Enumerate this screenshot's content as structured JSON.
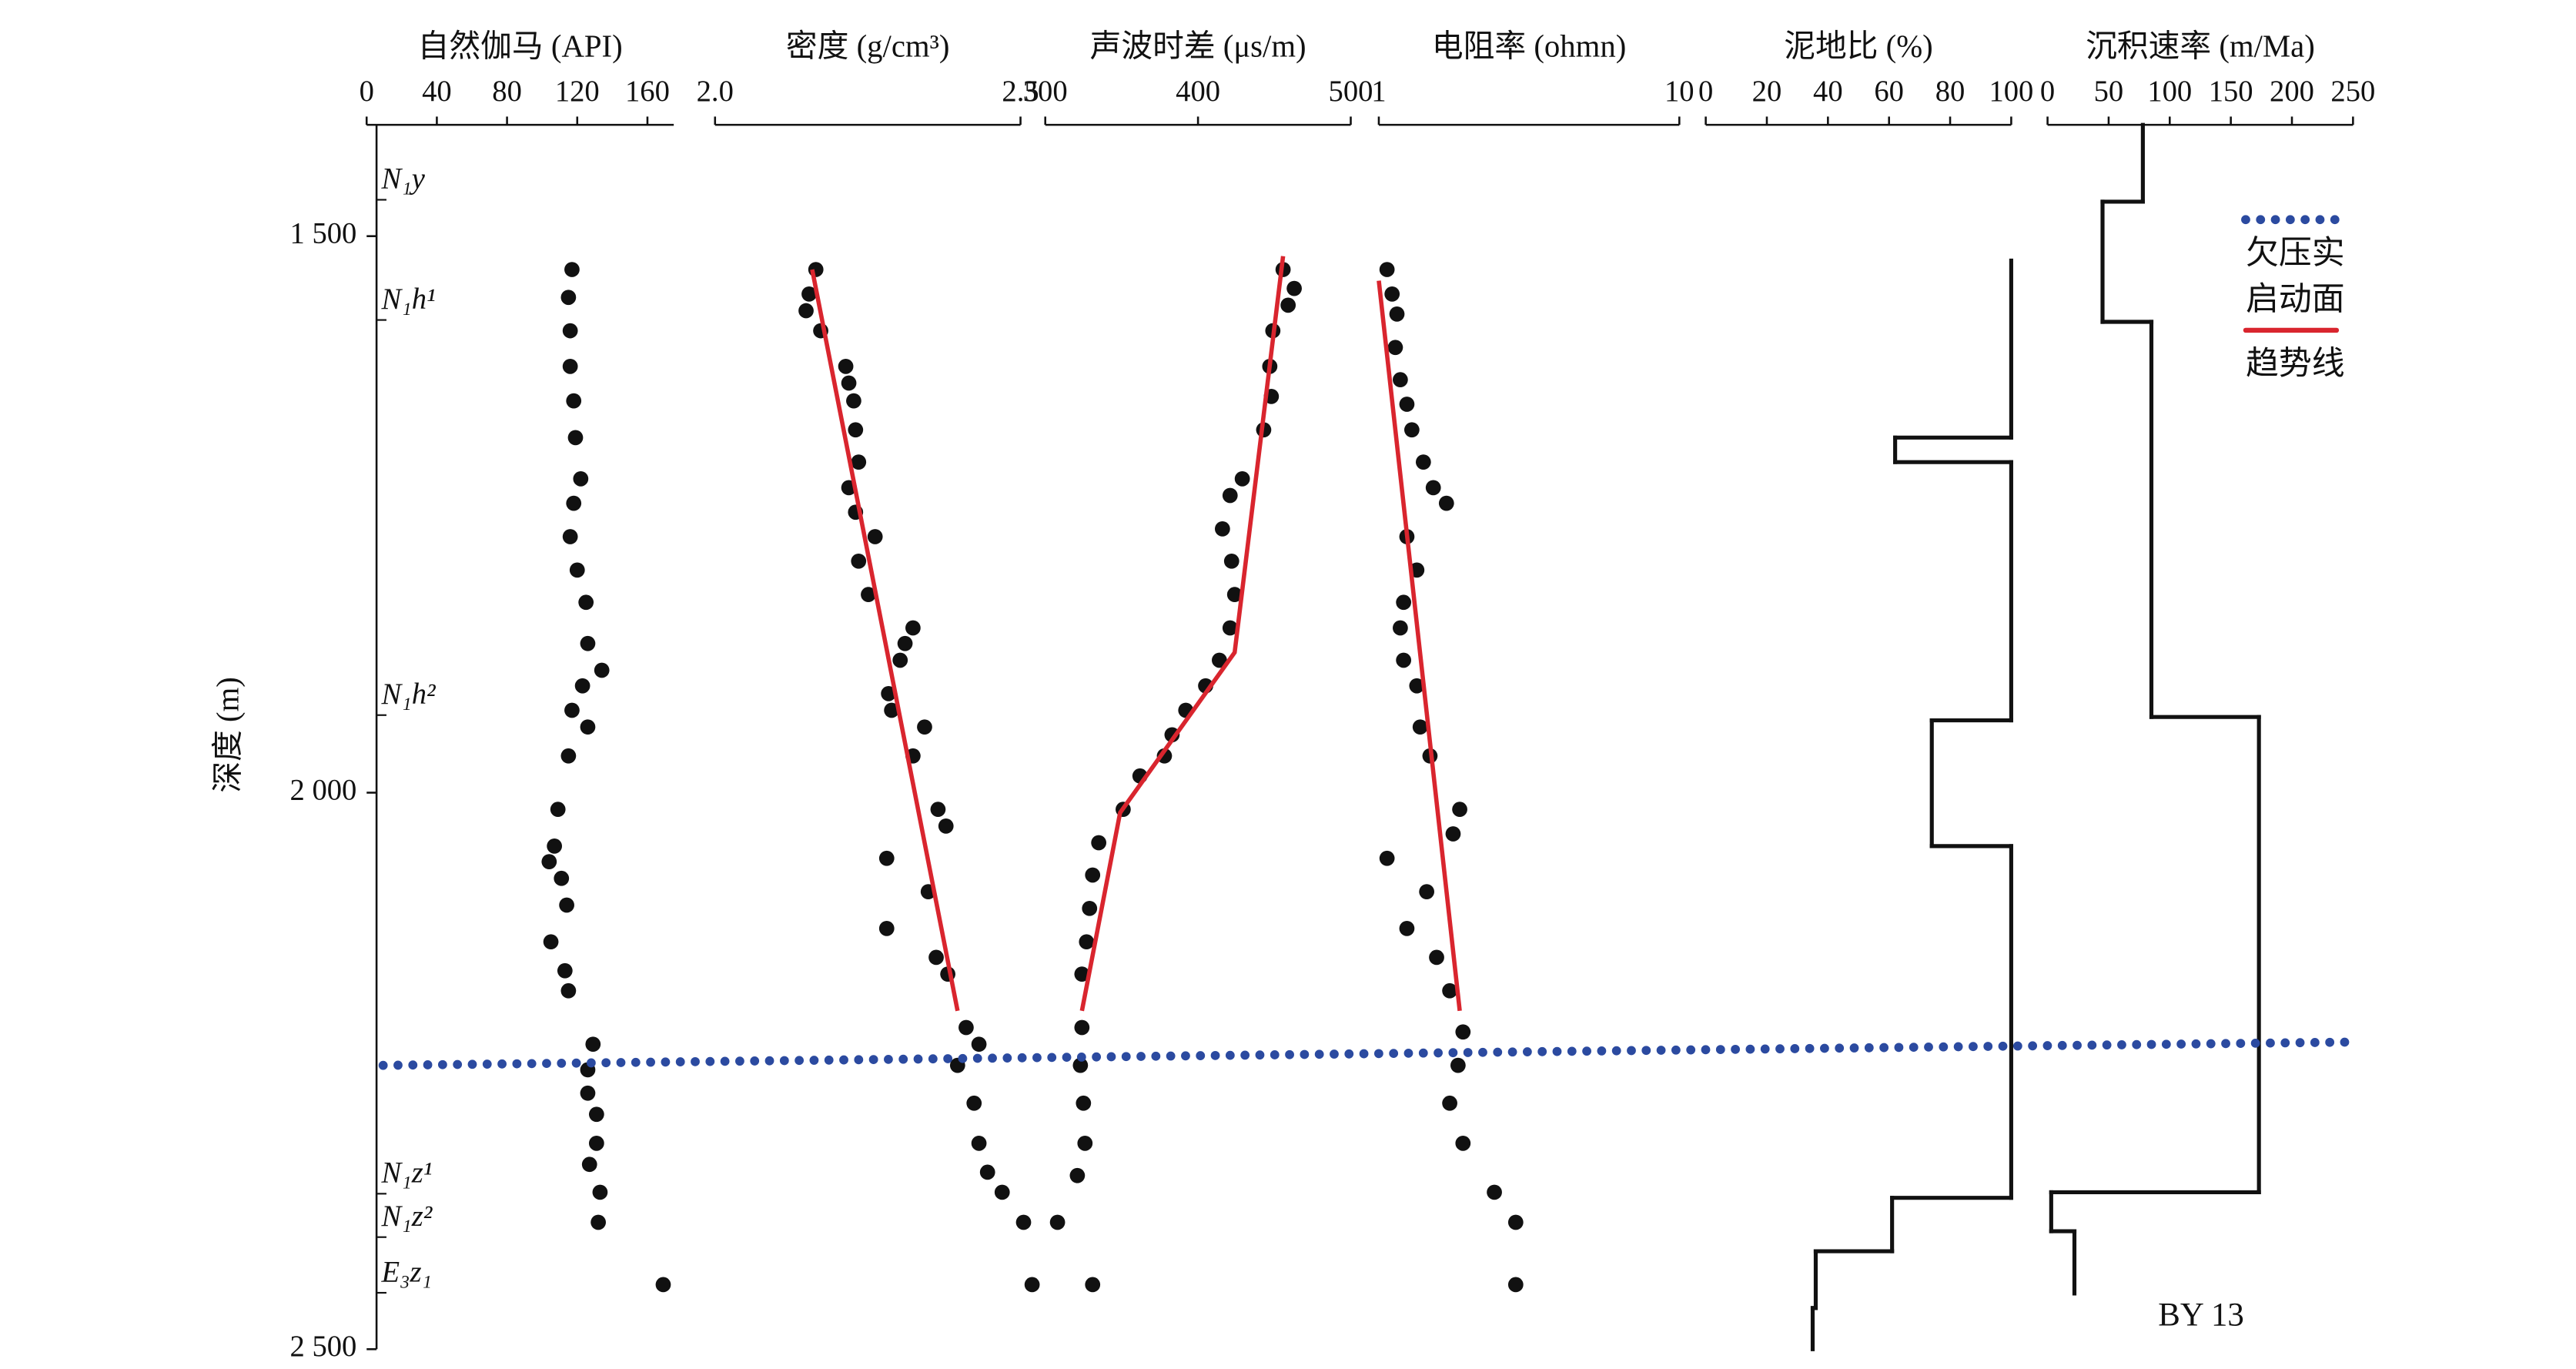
{
  "chart_data": {
    "type": "well-log",
    "ylabel": "深度 (m)",
    "ylim": [
      1400,
      2500
    ],
    "yticks": [
      {
        "value": 1500,
        "label": "1 500"
      },
      {
        "value": 2000,
        "label": "2 000"
      },
      {
        "value": 2500,
        "label": "2 500"
      }
    ],
    "tracks": [
      {
        "type": "scatter",
        "title": "自然伽马 (API)",
        "xlim": [
          0,
          175
        ],
        "xticks": [
          0,
          40,
          80,
          120,
          160
        ],
        "color": "#111111",
        "depth": [
          1530,
          1555,
          1585,
          1617,
          1648,
          1681,
          1718,
          1740,
          1770,
          1800,
          1829,
          1866,
          1890,
          1904,
          1926,
          1941,
          1967,
          2015,
          2048,
          2062,
          2077,
          2101,
          2134,
          2160,
          2178,
          2226,
          2249,
          2270,
          2289,
          2315,
          2334,
          2359,
          2386,
          2442
        ],
        "values": [
          117,
          115,
          116,
          116,
          118,
          119,
          122,
          118,
          116,
          120,
          125,
          126,
          134,
          123,
          117,
          126,
          115,
          109,
          107,
          104,
          111,
          114,
          105,
          113,
          115,
          129,
          126,
          126,
          131,
          131,
          127,
          133,
          132,
          169
        ]
      },
      {
        "type": "scatter",
        "title": "密度 (g/cm³)",
        "xlim": [
          2.0,
          2.5
        ],
        "xticks": [
          {
            "value": 2.0,
            "label": "2.0"
          },
          2.5
        ],
        "color": "#111111",
        "depth": [
          1530,
          1552,
          1567,
          1585,
          1617,
          1632,
          1648,
          1674,
          1703,
          1726,
          1748,
          1770,
          1792,
          1822,
          1852,
          1866,
          1881,
          1911,
          1926,
          1941,
          1967,
          2015,
          2030,
          2059,
          2089,
          2122,
          2148,
          2163,
          2211,
          2226,
          2245,
          2279,
          2315,
          2341,
          2359,
          2386,
          2442
        ],
        "values": [
          2.165,
          2.154,
          2.149,
          2.173,
          2.214,
          2.219,
          2.227,
          2.23,
          2.235,
          2.219,
          2.23,
          2.262,
          2.235,
          2.251,
          2.324,
          2.311,
          2.303,
          2.284,
          2.289,
          2.343,
          2.324,
          2.365,
          2.378,
          2.281,
          2.349,
          2.281,
          2.362,
          2.381,
          2.411,
          2.432,
          2.397,
          2.424,
          2.432,
          2.446,
          2.47,
          2.505,
          2.519
        ],
        "trend": {
          "color": "#d9252e",
          "depth": [
            1530,
            2196
          ],
          "values": [
            2.159,
            2.397
          ]
        }
      },
      {
        "type": "scatter",
        "title": "声波时差 (μs/m)",
        "xlim": [
          300,
          500
        ],
        "xticks": [
          300,
          400,
          500
        ],
        "color": "#111111",
        "depth": [
          1530,
          1547,
          1562,
          1585,
          1617,
          1644,
          1674,
          1718,
          1733,
          1763,
          1792,
          1822,
          1852,
          1881,
          1904,
          1926,
          1948,
          1967,
          1985,
          2015,
          2045,
          2074,
          2104,
          2134,
          2163,
          2211,
          2245,
          2279,
          2315,
          2344,
          2386,
          2442
        ],
        "values": [
          455.7,
          463,
          459,
          449,
          447,
          448,
          443,
          429,
          421,
          416,
          422,
          424,
          421,
          414,
          405,
          392,
          383,
          378,
          362,
          351,
          335,
          331,
          329,
          327,
          324,
          324,
          323,
          325,
          326,
          321,
          308,
          331
        ],
        "trend": {
          "color": "#d9252e",
          "depth": [
            1518,
            1874,
            2018,
            2196
          ],
          "values": [
            455.7,
            424,
            349,
            324
          ]
        }
      },
      {
        "type": "scatter",
        "title": "电阻率 (ohmn)",
        "xlim": [
          1,
          10
        ],
        "xticks": [
          1,
          10
        ],
        "log": true,
        "color": "#111111",
        "depth": [
          1530,
          1552,
          1570,
          1600,
          1629,
          1651,
          1674,
          1703,
          1726,
          1740,
          1770,
          1800,
          1829,
          1852,
          1881,
          1904,
          1941,
          1967,
          2015,
          2037,
          2059,
          2089,
          2122,
          2148,
          2178,
          2215,
          2245,
          2279,
          2315,
          2359,
          2386,
          2442
        ],
        "values": [
          1.065,
          1.107,
          1.149,
          1.135,
          1.179,
          1.24,
          1.288,
          1.407,
          1.518,
          1.679,
          1.24,
          1.338,
          1.209,
          1.179,
          1.209,
          1.338,
          1.373,
          1.48,
          1.859,
          1.767,
          1.065,
          1.443,
          1.24,
          1.557,
          1.722,
          1.906,
          1.835,
          1.722,
          1.906,
          2.424,
          2.855,
          2.855
        ],
        "trend": {
          "color": "#d9252e",
          "depth": [
            1540,
            2196
          ],
          "values": [
            1.0,
            1.859
          ]
        }
      },
      {
        "type": "step",
        "title": "泥地比 (%)",
        "xlim": [
          0,
          100
        ],
        "xticks": [
          0,
          20,
          40,
          60,
          80,
          100
        ],
        "color": "#111111",
        "depth_bounds": [
          1522,
          1681,
          1703,
          1935,
          2048,
          2364,
          2412,
          2463,
          2500
        ],
        "values": [
          100,
          62,
          100,
          74,
          100,
          61,
          36,
          35
        ]
      },
      {
        "type": "step",
        "title": "沉积速率 (m/Ma)",
        "xlim": [
          0,
          250
        ],
        "xticks": [
          0,
          50,
          100,
          150,
          200,
          250
        ],
        "color": "#111111",
        "depth_bounds": [
          1400,
          1469,
          1577,
          1932,
          2359,
          2394,
          2450
        ],
        "values": [
          78,
          45,
          85,
          173,
          3,
          22
        ]
      }
    ],
    "formations": [
      {
        "name": "N₁y",
        "depth": 1451
      },
      {
        "name": "N₁h¹",
        "depth": 1559
      },
      {
        "name": "N₁h²",
        "depth": 1914
      },
      {
        "name": "N₁z¹",
        "depth": 2344
      },
      {
        "name": "N₁z²",
        "depth": 2383
      },
      {
        "name": "E₃z₁",
        "depth": 2433
      }
    ],
    "overpressure_line": {
      "color": "#2b4aa0",
      "depths": [
        2245,
        2224
      ]
    },
    "legend": [
      {
        "lines": [
          "欠压实",
          "启动面"
        ],
        "color": "#2b4aa0",
        "style": "dotted"
      },
      {
        "lines": [
          "趋势线"
        ],
        "color": "#d9252e",
        "style": "solid"
      }
    ],
    "annotation": "BY 13"
  }
}
